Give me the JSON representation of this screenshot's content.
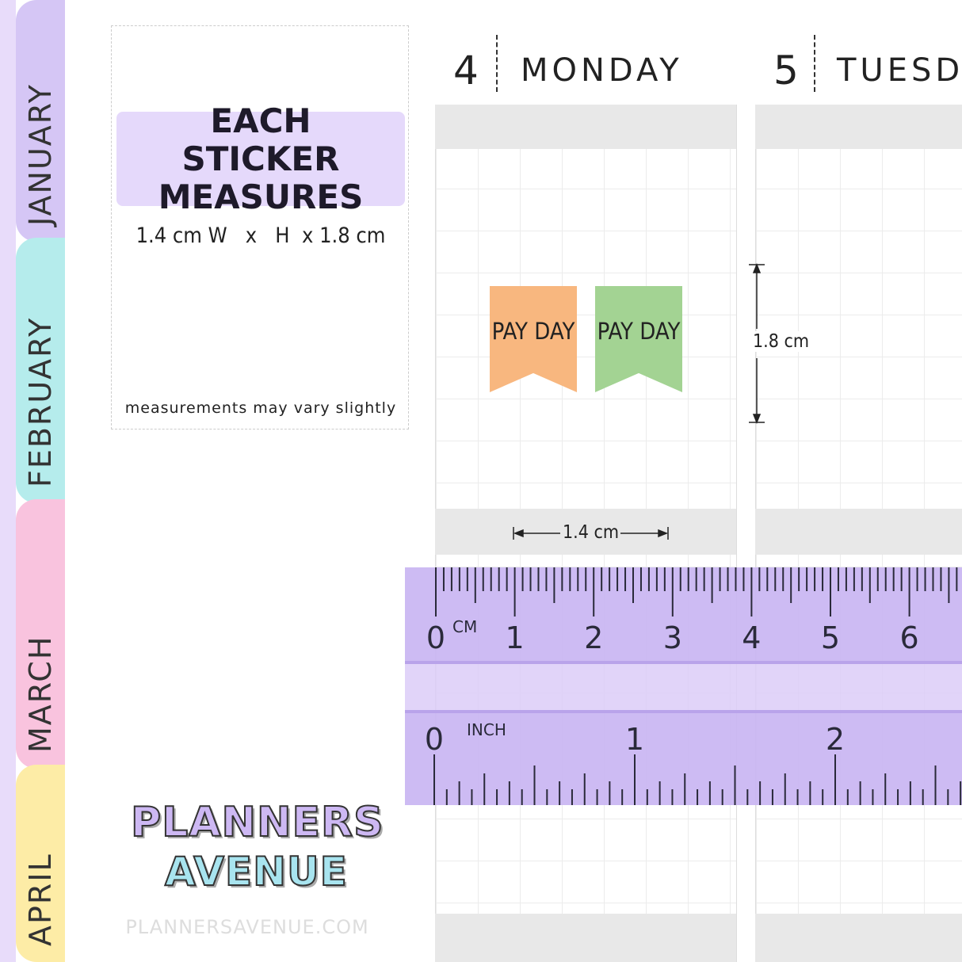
{
  "tabs": [
    "JANUARY",
    "FEBRUARY",
    "MARCH",
    "APRIL"
  ],
  "info_box": {
    "title": "EACH STICKER MEASURES",
    "size": "1.4 cm W   x   H  x 1.8 cm",
    "note": "measurements may vary slightly"
  },
  "days": [
    {
      "number": "4",
      "name": "MONDAY"
    },
    {
      "number": "5",
      "name": "TUESDAY"
    }
  ],
  "stickers": [
    {
      "text": "PAY DAY"
    },
    {
      "text": "PAY DAY"
    }
  ],
  "dimensions": {
    "height": "1.8 cm",
    "width": "1.4 cm"
  },
  "ruler": {
    "cm_unit": "CM",
    "cm_labels": [
      "0",
      "1",
      "2",
      "3",
      "4",
      "5",
      "6"
    ],
    "inch_unit": "INCH",
    "inch_labels": [
      "0",
      "1",
      "2"
    ]
  },
  "logo": {
    "line1": "PLANNERS",
    "line2": "AVENUE"
  },
  "footer": "PLANNERSAVENUE.COM"
}
